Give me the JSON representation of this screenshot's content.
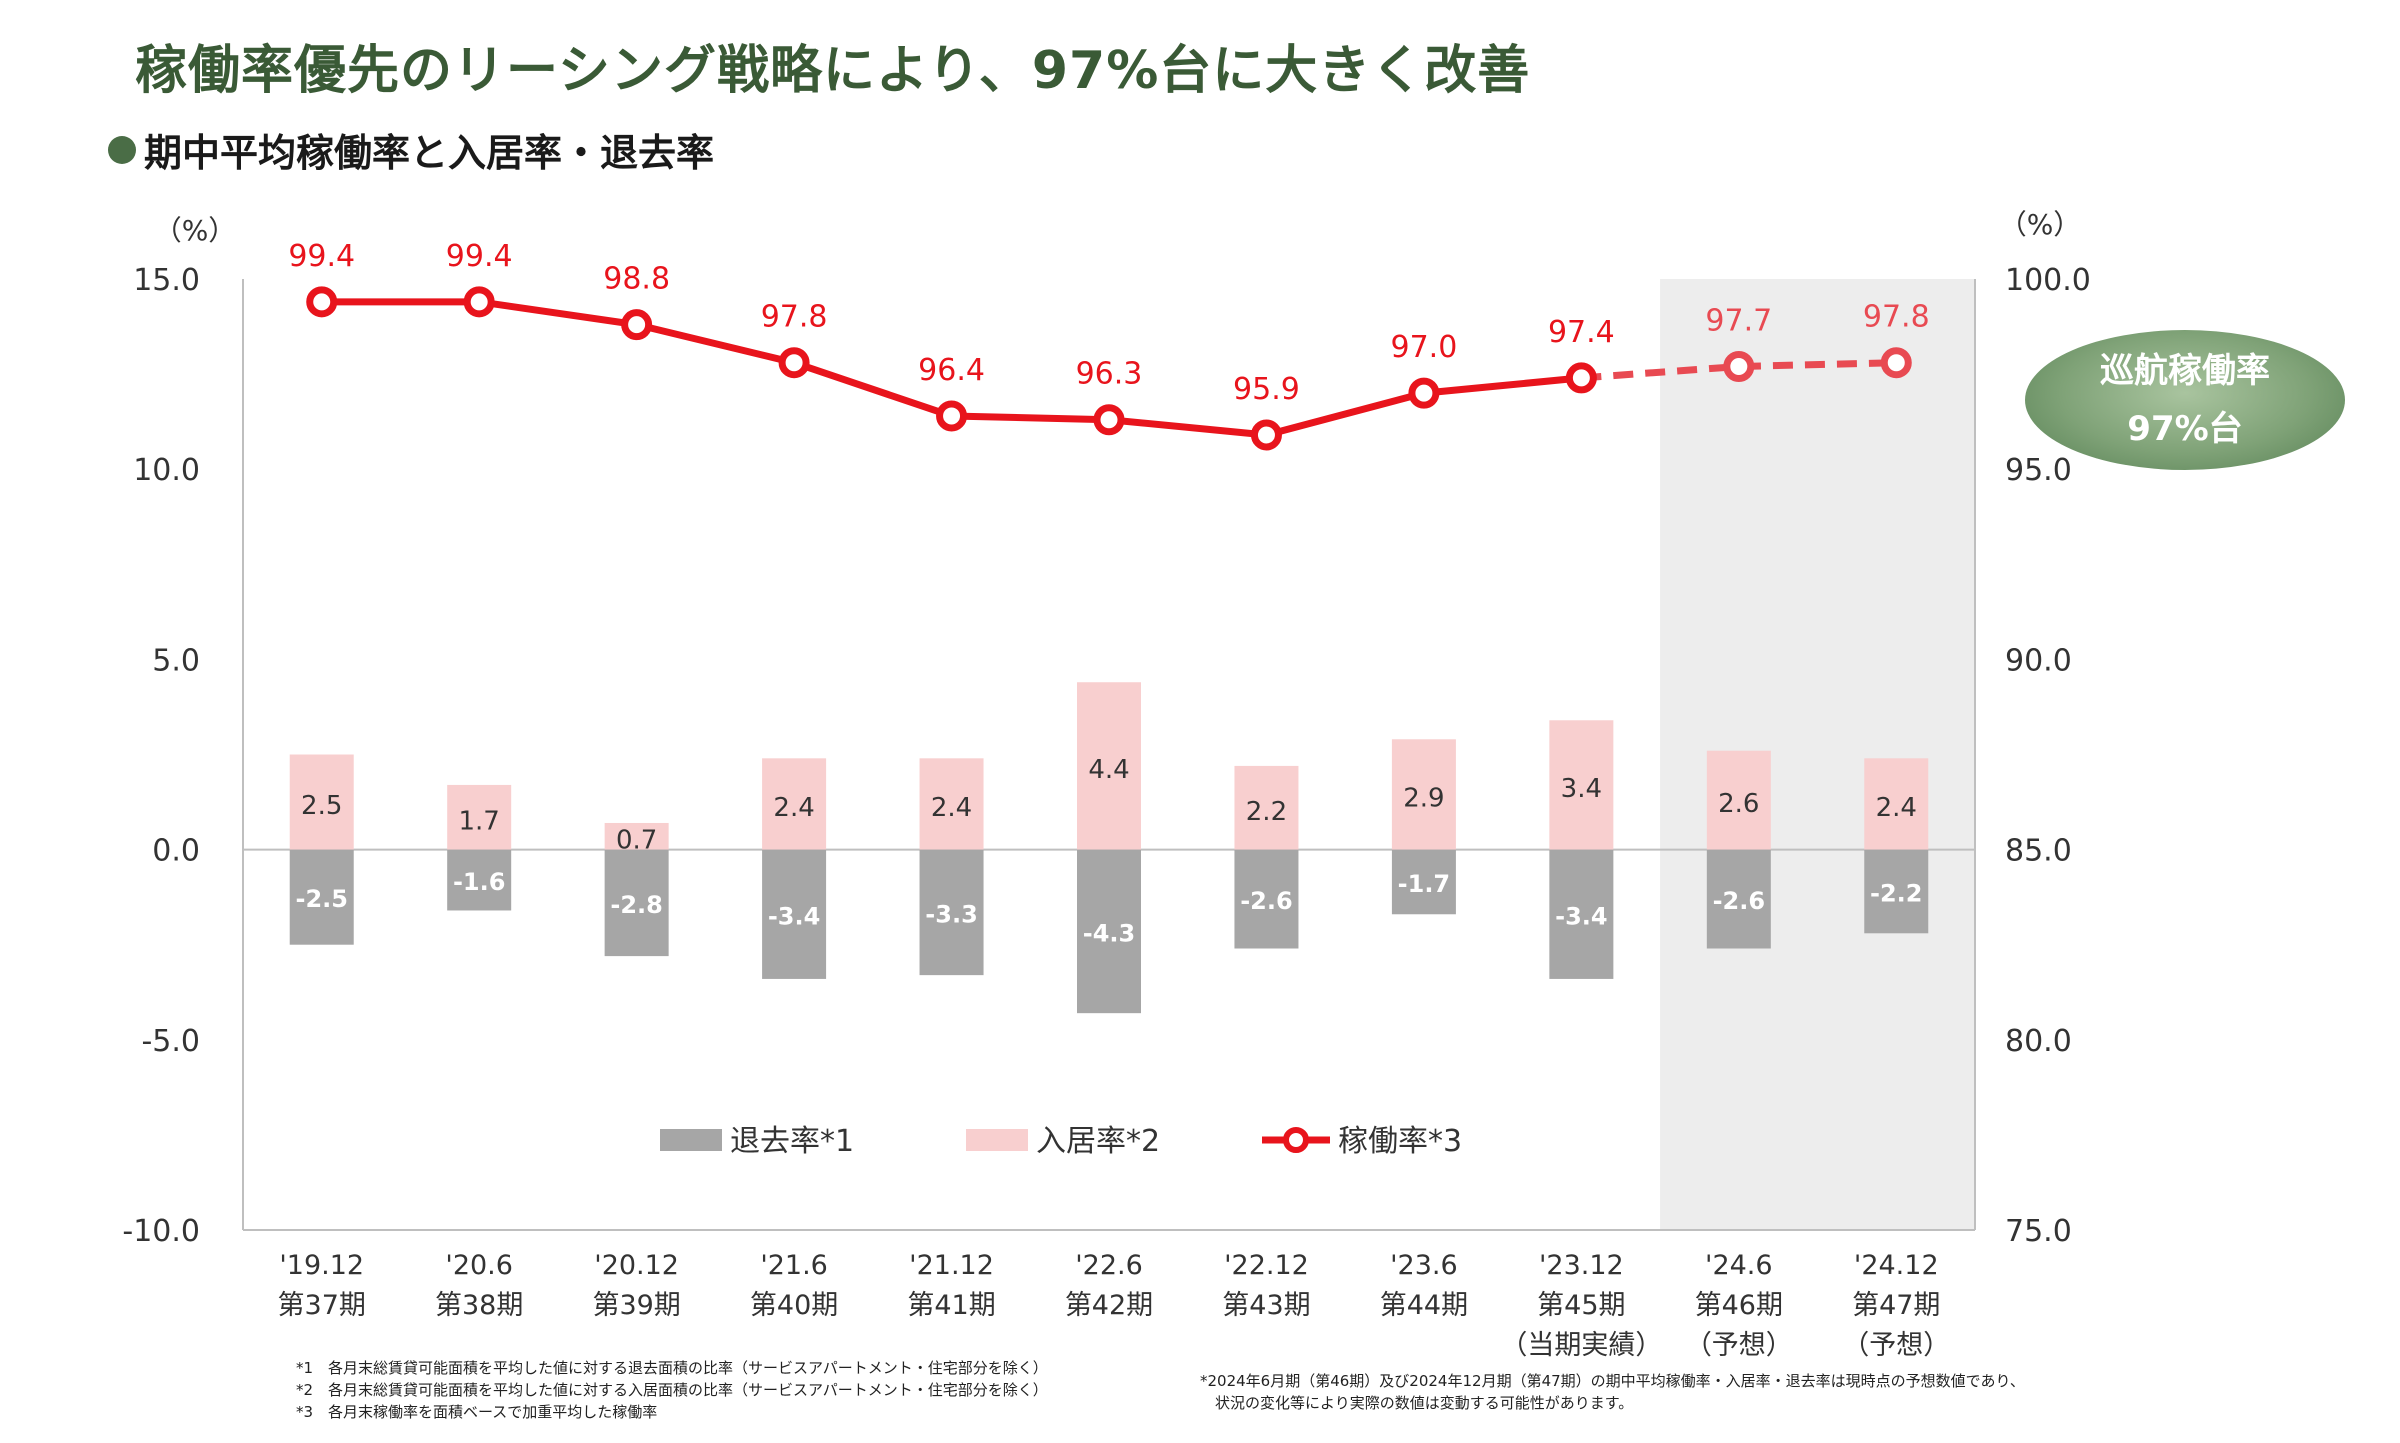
{
  "headline": "稼働率優先のリーシング戦略により、97%台に大きく改善",
  "subtitle": "期中平均稼働率と入居率・退去率",
  "badge": {
    "line1": "巡航稼働率",
    "line2": "97%台"
  },
  "colors": {
    "move_out": "#a6a6a6",
    "move_in": "#f8cfcf",
    "occupancy": "#e8141c",
    "forecast_shade": "#ededed",
    "headline": "#3a5a36"
  },
  "chart_data": {
    "type": "bar",
    "categories": [
      [
        "'19.12",
        "第37期"
      ],
      [
        "'20.6",
        "第38期"
      ],
      [
        "'20.12",
        "第39期"
      ],
      [
        "'21.6",
        "第40期"
      ],
      [
        "'21.12",
        "第41期"
      ],
      [
        "'22.6",
        "第42期"
      ],
      [
        "'22.12",
        "第43期"
      ],
      [
        "'23.6",
        "第44期"
      ],
      [
        "'23.12",
        "第45期",
        "（当期実績）"
      ],
      [
        "'24.6",
        "第46期",
        "（予想）"
      ],
      [
        "'24.12",
        "第47期",
        "（予想）"
      ]
    ],
    "left_axis": {
      "unit": "（%）",
      "ylim": [
        -10,
        15
      ],
      "ticks": [
        "15.0",
        "10.0",
        "5.0",
        "0.0",
        "-5.0",
        "-10.0"
      ]
    },
    "right_axis": {
      "unit": "（%）",
      "ylim": [
        75,
        100
      ],
      "ticks": [
        "100.0",
        "95.0",
        "90.0",
        "85.0",
        "80.0",
        "75.0"
      ]
    },
    "series": [
      {
        "name": "退去率*1",
        "type": "bar",
        "axis": "left",
        "values": [
          -2.5,
          -1.6,
          -2.8,
          -3.4,
          -3.3,
          -4.3,
          -2.6,
          -1.7,
          -3.4,
          -2.6,
          -2.2
        ]
      },
      {
        "name": "入居率*2",
        "type": "bar",
        "axis": "left",
        "values": [
          2.5,
          1.7,
          0.7,
          2.4,
          2.4,
          4.4,
          2.2,
          2.9,
          3.4,
          2.6,
          2.4
        ]
      },
      {
        "name": "稼働率*3",
        "type": "line",
        "axis": "right",
        "values": [
          99.4,
          99.4,
          98.8,
          97.8,
          96.4,
          96.3,
          95.9,
          97.0,
          97.4,
          97.7,
          97.8
        ]
      }
    ],
    "forecast_categories": [
      "'24.6",
      "'24.12"
    ],
    "legend_position": "bottom-center",
    "grid": false
  },
  "footnotes_left": [
    "*1　各月末総賃貸可能面積を平均した値に対する退去面積の比率（サービスアパートメント・住宅部分を除く）",
    "*2　各月末総賃貸可能面積を平均した値に対する入居面積の比率（サービスアパートメント・住宅部分を除く）",
    "*3　各月末稼働率を面積ベースで加重平均した稼働率"
  ],
  "footnotes_right": [
    "*2024年6月期（第46期）及び2024年12月期（第47期）の期中平均稼働率・入居率・退去率は現時点の予想数値であり、",
    "　状況の変化等により実際の数値は変動する可能性があります。"
  ]
}
